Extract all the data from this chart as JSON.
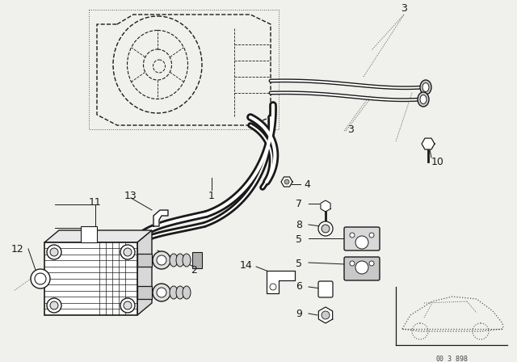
{
  "bg_color": "#f0f0ec",
  "line_color": "#1a1a1a",
  "dotted_color": "#555555",
  "fig_width": 6.4,
  "fig_height": 4.48,
  "dpi": 100,
  "car_label": "00_3_898"
}
